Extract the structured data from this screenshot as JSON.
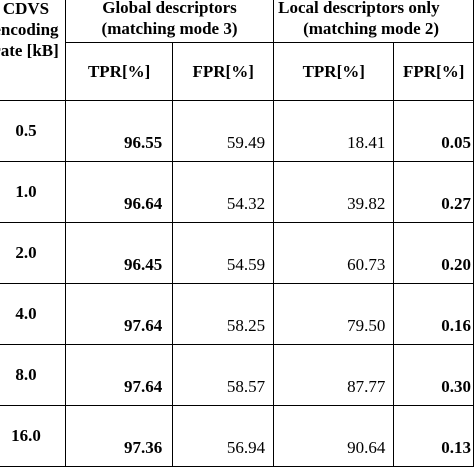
{
  "header": {
    "rate_label": [
      "CDVS",
      "encoding",
      "rate [kB]"
    ],
    "group_global": [
      "Global descriptors",
      "(matching mode 3)"
    ],
    "group_local": [
      "Local descriptors only",
      "(matching mode 2)"
    ],
    "tpr": "TPR[%]",
    "fpr": "FPR[%]"
  },
  "rows": [
    {
      "rate": "0.5",
      "g_tpr": "96.55",
      "g_fpr": "59.49",
      "l_tpr": "18.41",
      "l_fpr": "0.05"
    },
    {
      "rate": "1.0",
      "g_tpr": "96.64",
      "g_fpr": "54.32",
      "l_tpr": "39.82",
      "l_fpr": "0.27"
    },
    {
      "rate": "2.0",
      "g_tpr": "96.45",
      "g_fpr": "54.59",
      "l_tpr": "60.73",
      "l_fpr": "0.20"
    },
    {
      "rate": "4.0",
      "g_tpr": "97.64",
      "g_fpr": "58.25",
      "l_tpr": "79.50",
      "l_fpr": "0.16"
    },
    {
      "rate": "8.0",
      "g_tpr": "97.64",
      "g_fpr": "58.57",
      "l_tpr": "87.77",
      "l_fpr": "0.30"
    },
    {
      "rate": "16.0",
      "g_tpr": "97.36",
      "g_fpr": "56.94",
      "l_tpr": "90.64",
      "l_fpr": "0.13"
    }
  ]
}
